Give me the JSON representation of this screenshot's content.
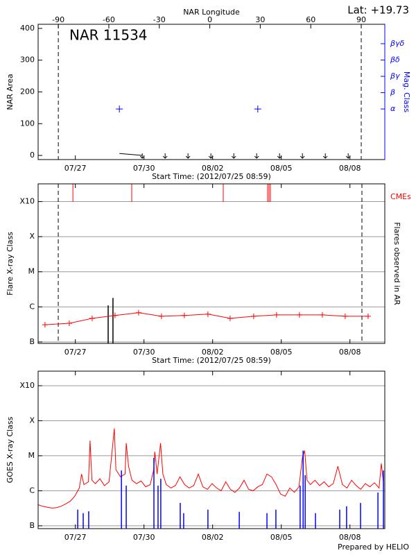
{
  "chart_data": [
    {
      "type": "line",
      "title": "NAR 11534",
      "subtitle": "Lat: +19.73",
      "xlabel": "Start Time: (2012/07/25 08:59)",
      "ylabel": "NAR Area",
      "y2label": "Mag. Class",
      "x2label": "NAR Longitude",
      "y2color": "#0000ff",
      "xlim": [
        0,
        15.15
      ],
      "xticks": [
        {
          "value": 1.626,
          "label": "07/27"
        },
        {
          "value": 4.626,
          "label": "07/30"
        },
        {
          "value": 7.626,
          "label": "08/02"
        },
        {
          "value": 10.626,
          "label": "08/05"
        },
        {
          "value": 13.626,
          "label": "08/08"
        }
      ],
      "ylim": [
        -13,
        413
      ],
      "yticks": [
        0,
        100,
        200,
        300,
        400
      ],
      "x2lim": [
        -102,
        104
      ],
      "x2ticks": [
        -90,
        -60,
        -30,
        0,
        30,
        60,
        90
      ],
      "y2lim": [
        -2.1,
        6.19
      ],
      "y2ticks": [
        {
          "value": 1,
          "label": "α"
        },
        {
          "value": 2,
          "label": "β"
        },
        {
          "value": 3,
          "label": "βγ"
        },
        {
          "value": 4,
          "label": "βδ"
        },
        {
          "value": 5,
          "label": "βγδ"
        }
      ],
      "dashed_x2": [
        -90,
        90
      ],
      "series": [
        {
          "color": "#000000",
          "style": "line",
          "x": [
            3.55,
            4.55
          ],
          "values": [
            6,
            0
          ]
        },
        {
          "color": "#000000",
          "style": "arrows",
          "x": [
            4.55,
            5.55,
            6.55,
            7.55,
            8.55,
            9.55,
            10.55,
            11.55,
            12.55,
            13.55
          ],
          "values": [
            0,
            0,
            0,
            0,
            0,
            0,
            0,
            0,
            0,
            0
          ]
        },
        {
          "color": "#0000ff",
          "style": "points",
          "axis": "y2",
          "x": [
            3.55,
            9.6
          ],
          "values": [
            1,
            1
          ]
        }
      ]
    },
    {
      "type": "line",
      "xlabel": "Start Time: (2012/07/25 08:59)",
      "ylabel": "Flare X-ray Class",
      "y2label": "Flares observed in AR",
      "annotation": "CMEs",
      "annotation_color": "#ff0000",
      "log": true,
      "grid": true,
      "xlim": [
        0,
        15.15
      ],
      "xticks": [
        {
          "value": 1.626,
          "label": "07/27"
        },
        {
          "value": 4.626,
          "label": "07/30"
        },
        {
          "value": 7.626,
          "label": "08/02"
        },
        {
          "value": 10.626,
          "label": "08/05"
        },
        {
          "value": 13.626,
          "label": "08/08"
        }
      ],
      "ylim": [
        9.1e-08,
        0.0032
      ],
      "yticks": [
        {
          "value": 1e-07,
          "label": "B"
        },
        {
          "value": 1e-06,
          "label": "C"
        },
        {
          "value": 1e-05,
          "label": "M"
        },
        {
          "value": 0.0001,
          "label": "X"
        },
        {
          "value": 0.001,
          "label": "X10"
        }
      ],
      "dashed_x": [
        0.88,
        14.15
      ],
      "series": [
        {
          "color": "#ff0000",
          "style": "events",
          "x": [
            1.52,
            4.09,
            8.09,
            10.03,
            10.09,
            10.15
          ]
        },
        {
          "color": "#000000",
          "style": "bars",
          "x": [
            3.06,
            3.27
          ],
          "values": [
            1.1e-06,
            1.8e-06
          ]
        },
        {
          "color": "#ff0000",
          "style": "line-plus",
          "x": [
            0.3,
            1.36,
            2.36,
            3.36,
            4.39,
            5.39,
            6.39,
            7.42,
            8.39,
            9.42,
            10.42,
            11.42,
            12.42,
            13.42,
            14.42
          ],
          "values": [
            3.1e-07,
            3.4e-07,
            4.7e-07,
            5.7e-07,
            6.8e-07,
            5.4e-07,
            5.7e-07,
            6.2e-07,
            4.7e-07,
            5.4e-07,
            5.9e-07,
            5.9e-07,
            5.9e-07,
            5.4e-07,
            5.4e-07
          ]
        }
      ]
    },
    {
      "type": "line",
      "ylabel": "GOES X-ray Class",
      "log": true,
      "grid": true,
      "xlim": [
        0,
        15.15
      ],
      "xticks": [
        {
          "value": 1.626,
          "label": "07/27"
        },
        {
          "value": 4.626,
          "label": "07/30"
        },
        {
          "value": 7.626,
          "label": "08/02"
        },
        {
          "value": 10.626,
          "label": "08/05"
        },
        {
          "value": 13.626,
          "label": "08/08"
        }
      ],
      "ylim": [
        8.3e-08,
        0.0026
      ],
      "yticks": [
        {
          "value": 1e-07,
          "label": "B"
        },
        {
          "value": 1e-06,
          "label": "C"
        },
        {
          "value": 1e-05,
          "label": "M"
        },
        {
          "value": 0.0001,
          "label": "X"
        },
        {
          "value": 0.001,
          "label": "X10"
        }
      ],
      "series": [
        {
          "color": "#ff0000",
          "style": "line",
          "x": [
            0,
            0.2,
            0.4,
            0.6,
            0.8,
            1.0,
            1.2,
            1.4,
            1.6,
            1.8,
            1.9,
            2.0,
            2.2,
            2.27,
            2.35,
            2.5,
            2.7,
            2.9,
            3.1,
            3.33,
            3.4,
            3.6,
            3.8,
            3.85,
            3.95,
            4.1,
            4.3,
            4.5,
            4.7,
            4.9,
            5.05,
            5.1,
            5.2,
            5.35,
            5.45,
            5.6,
            5.8,
            6.0,
            6.2,
            6.4,
            6.6,
            6.8,
            7.0,
            7.2,
            7.4,
            7.6,
            7.8,
            8.0,
            8.2,
            8.4,
            8.6,
            8.8,
            9.0,
            9.2,
            9.4,
            9.6,
            9.8,
            10.0,
            10.2,
            10.4,
            10.6,
            10.8,
            11.0,
            11.2,
            11.4,
            11.55,
            11.65,
            11.75,
            11.9,
            12.1,
            12.3,
            12.5,
            12.7,
            12.9,
            13.1,
            13.3,
            13.5,
            13.7,
            13.9,
            14.1,
            14.3,
            14.5,
            14.7,
            14.9,
            15.0,
            15.1
          ],
          "values": [
            4e-07,
            3.6e-07,
            3.4e-07,
            3.2e-07,
            3.3e-07,
            3.6e-07,
            4.2e-07,
            5e-07,
            7e-07,
            1.2e-06,
            3e-06,
            1.5e-06,
            1.8e-06,
            2.7e-05,
            2e-06,
            1.6e-06,
            2.2e-06,
            1.4e-06,
            1.8e-06,
            6e-05,
            4e-06,
            2.5e-06,
            3e-06,
            2.3e-05,
            5e-06,
            2e-06,
            1.6e-06,
            1.9e-06,
            1.3e-06,
            1.5e-06,
            4e-06,
            1.3e-05,
            3e-06,
            2.3e-05,
            3e-06,
            1.5e-06,
            1.2e-06,
            1.4e-06,
            2.5e-06,
            1.5e-06,
            1.2e-06,
            1.4e-06,
            3e-06,
            1.3e-06,
            1.1e-06,
            1.6e-06,
            1.2e-06,
            1e-06,
            1.8e-06,
            1.1e-06,
            9e-07,
            1.2e-06,
            2e-06,
            1.1e-06,
            1e-06,
            1.3e-06,
            1.5e-06,
            3e-06,
            2.5e-06,
            1.5e-06,
            8e-07,
            7e-07,
            1.2e-06,
            9e-07,
            1.3e-06,
            9e-06,
            1.4e-05,
            2e-06,
            1.5e-06,
            2e-06,
            1.4e-06,
            1.8e-06,
            1.3e-06,
            1.6e-06,
            5e-06,
            1.5e-06,
            1.2e-06,
            2e-06,
            1.4e-06,
            1.1e-06,
            1.6e-06,
            1.3e-06,
            1.7e-06,
            1.2e-06,
            6e-06,
            1.5e-06
          ]
        },
        {
          "color": "#0000ff",
          "style": "bars",
          "x": [
            1.73,
            1.97,
            2.21,
            3.64,
            3.85,
            5.06,
            5.24,
            5.36,
            6.21,
            6.36,
            7.42,
            8.79,
            10.0,
            10.39,
            11.45,
            11.58,
            11.67,
            12.12,
            13.18,
            13.48,
            14.09,
            14.85,
            15.09
          ],
          "values": [
            2.9e-07,
            2.3e-07,
            2.6e-07,
            3.8e-06,
            1.4e-06,
            8.7e-06,
            1.4e-06,
            2.2e-06,
            4.5e-07,
            2.3e-07,
            2.9e-07,
            2.5e-07,
            2.3e-07,
            2.9e-07,
            1.4e-06,
            1.4e-05,
            2.8e-06,
            2.3e-07,
            2.9e-07,
            3.6e-07,
            4.5e-07,
            8.9e-07,
            3.8e-06
          ]
        }
      ]
    }
  ],
  "footer": "Prepared by HELIO"
}
